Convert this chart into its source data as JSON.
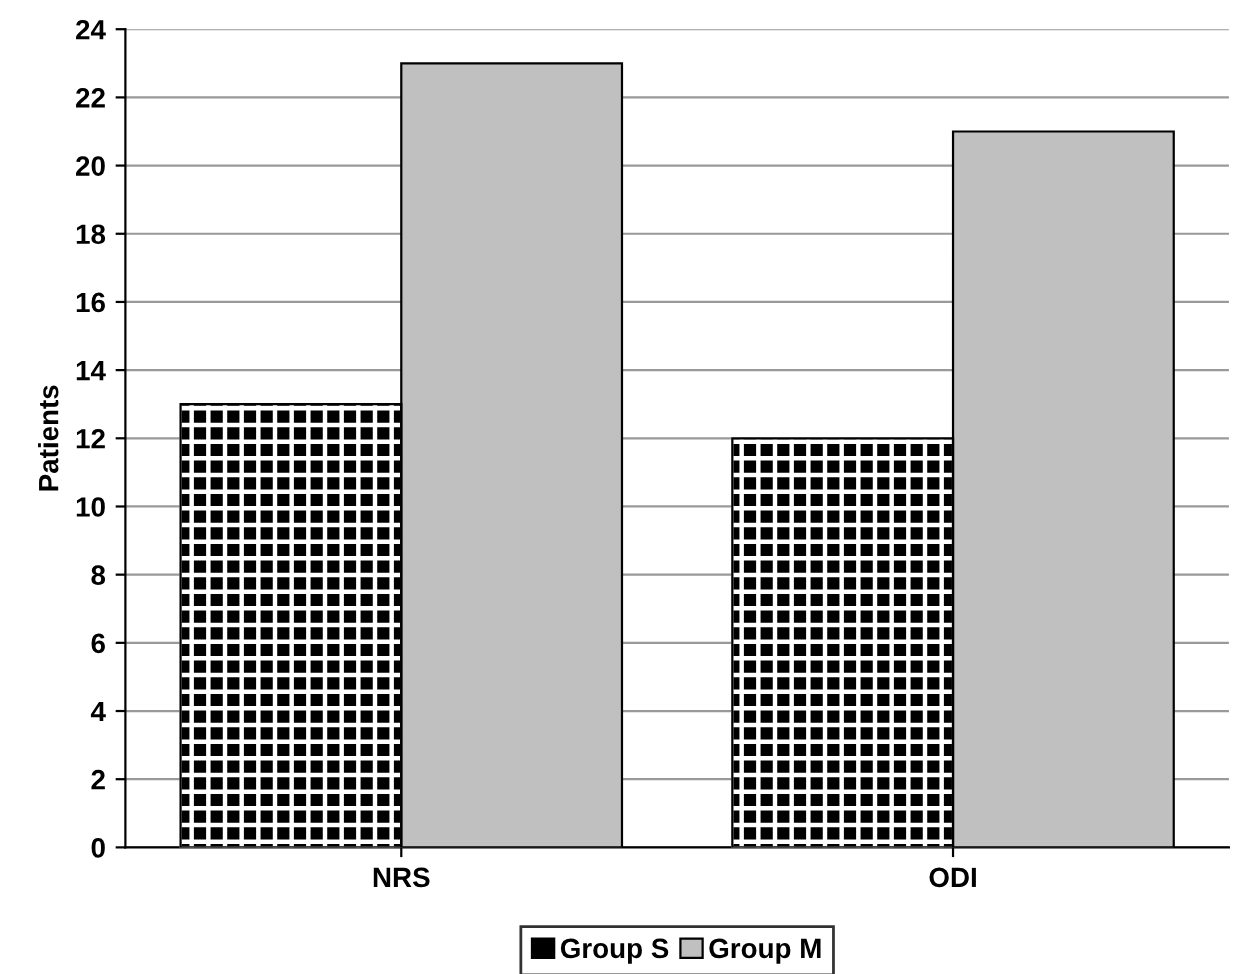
{
  "chart_data": {
    "type": "bar",
    "ylabel": "Patients",
    "categories": [
      "NRS",
      "ODI"
    ],
    "series": [
      {
        "name": "Group S",
        "color": "#000000",
        "values": [
          13,
          12
        ]
      },
      {
        "name": "Group M",
        "color": "#c0c0c0",
        "values": [
          23,
          21
        ]
      }
    ],
    "ylim": [
      0,
      24
    ],
    "yticks": [
      0,
      2,
      4,
      6,
      8,
      10,
      12,
      14,
      16,
      18,
      20,
      22,
      24
    ],
    "grid": "y",
    "legend": "bottom"
  }
}
